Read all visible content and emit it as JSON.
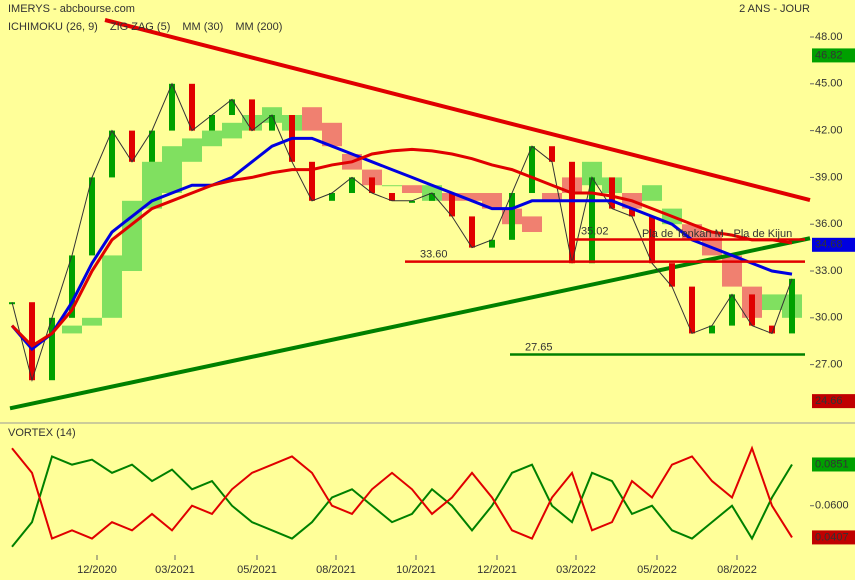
{
  "chart_data": {
    "type": "financial",
    "title": "IMERYS - abcbourse.com",
    "subtitle": "2 ANS - JOUR",
    "x": [
      0,
      1,
      2,
      3,
      4,
      5,
      6,
      7,
      8,
      9,
      10,
      11,
      12,
      13,
      14,
      15,
      16,
      17,
      18,
      19,
      20,
      21,
      22,
      23,
      24,
      25,
      26,
      27,
      28,
      29,
      30,
      31,
      32,
      33,
      34,
      35,
      36,
      37,
      38,
      39
    ],
    "xlim": [
      -0.1,
      39.9
    ],
    "xticks": [
      {
        "value": 4.25,
        "label": "12/2020"
      },
      {
        "value": 8.15,
        "label": "03/2021"
      },
      {
        "value": 12.25,
        "label": "05/2021"
      },
      {
        "value": 16.2,
        "label": "08/2021"
      },
      {
        "value": 20.2,
        "label": "10/2021"
      },
      {
        "value": 24.25,
        "label": "12/2021"
      },
      {
        "value": 28.2,
        "label": "03/2022"
      },
      {
        "value": 32.25,
        "label": "05/2022"
      },
      {
        "value": 36.25,
        "label": "08/2022"
      }
    ],
    "ylim": [
      23.45,
      49.09
    ],
    "yticks": [
      {
        "value": 27,
        "label": "27.00"
      },
      {
        "value": 30,
        "label": "30.00"
      },
      {
        "value": 33,
        "label": "33.00"
      },
      {
        "value": 36,
        "label": "36.00"
      },
      {
        "value": 39,
        "label": "39.00"
      },
      {
        "value": 42,
        "label": "42.00"
      },
      {
        "value": 45,
        "label": "45.00"
      },
      {
        "value": 48,
        "label": "48.00"
      }
    ],
    "price": {
      "up_color": "#00a000",
      "down_color": "#e00000",
      "values": [
        31,
        26,
        30,
        34,
        39,
        42,
        40,
        42,
        45,
        42,
        43,
        44,
        42,
        43,
        40,
        37.5,
        38,
        39,
        38,
        37.5,
        37.5,
        38,
        36.5,
        34.5,
        35,
        38,
        41,
        40,
        33.5,
        39,
        37,
        36.5,
        33.5,
        32,
        29,
        29.5,
        31.5,
        29.5,
        29,
        32.5
      ]
    },
    "ichimoku": {
      "name": "ICHIMOKU (26, 9)",
      "color": "#e00000",
      "up_color": "#80e060",
      "down_color": "#f08070",
      "span_a": [
        null,
        null,
        null,
        29.5,
        30,
        34,
        37.5,
        40,
        41,
        41.5,
        42,
        42.5,
        43,
        43.5,
        43,
        42,
        41,
        39.5,
        38.5,
        38.5,
        38,
        38.5,
        37.5,
        37.5,
        37,
        36,
        35.5,
        37.5,
        38,
        40,
        39,
        37,
        38.5,
        37,
        35,
        34,
        32,
        30,
        31.5,
        31.5
      ],
      "span_b": [
        null,
        null,
        null,
        29,
        29.5,
        30,
        33,
        37,
        38,
        40,
        41,
        41.5,
        42,
        42.5,
        42,
        43.5,
        42.5,
        40.5,
        39.5,
        38.5,
        38.5,
        37.5,
        38,
        38,
        38,
        37,
        36.5,
        38,
        39,
        38.5,
        38,
        38,
        37.5,
        36,
        36,
        35.5,
        34,
        32,
        30.5,
        30
      ]
    },
    "zigzag": {
      "name": "ZIG ZAG (5)",
      "color": "#000000"
    },
    "series": [
      {
        "name": "MM (30)",
        "color": "#0000e0",
        "values": [
          29.5,
          28,
          29,
          31,
          33.5,
          35.5,
          36.5,
          37.5,
          38,
          38.5,
          38.5,
          39,
          40,
          41,
          41.5,
          41.5,
          41,
          40.5,
          40,
          39.5,
          39,
          38.5,
          38,
          37.5,
          37,
          37,
          37.5,
          37.5,
          37.5,
          37.5,
          37.5,
          37,
          36.5,
          36,
          35,
          34.5,
          34,
          33.5,
          33,
          32.8
        ]
      },
      {
        "name": "MM (200)",
        "color": "#e00000",
        "values": [
          29.5,
          28.2,
          29,
          30.5,
          33,
          35,
          36,
          37,
          37.5,
          38,
          38.5,
          38.8,
          39,
          39.3,
          39.5,
          39.5,
          39.8,
          40,
          40.5,
          40.7,
          40.8,
          40.7,
          40.5,
          40.2,
          39.8,
          39.5,
          39,
          38.5,
          38,
          38,
          37.8,
          37.5,
          37,
          36.5,
          36,
          35.5,
          35.3,
          35,
          35,
          34.8
        ]
      }
    ],
    "trendlines": [
      {
        "color": "#e00000",
        "x": [
          4.65,
          39.9
        ],
        "y": [
          49.09,
          37.55
        ]
      },
      {
        "color": "#008000",
        "x": [
          -0.1,
          39.9
        ],
        "y": [
          24.2,
          35.1
        ]
      }
    ],
    "levels": [
      {
        "value": 33.6,
        "label": "33.60",
        "from": 19.65,
        "color": "#e00000"
      },
      {
        "value": 27.65,
        "label": "27.65",
        "from": 24.9,
        "color": "#008000"
      },
      {
        "value": 35.02,
        "label": "35.02",
        "from": 28.15,
        "color": "#e00000"
      }
    ],
    "annotation": "Pla de Tenkan M - Pla de Kijun",
    "markers": [
      {
        "value": 46.82,
        "color": "#00a000"
      },
      {
        "value": 34.68,
        "color": "#0000e0"
      },
      {
        "value": 24.66,
        "color": "#c00000"
      }
    ],
    "vortex": {
      "title": "VORTEX (14)",
      "ylim": [
        0.03,
        0.1
      ],
      "yticks": [
        {
          "value": 0.06,
          "label": "0.0600"
        }
      ],
      "series": [
        {
          "color": "#008000",
          "values": [
            0.035,
            0.05,
            0.09,
            0.085,
            0.088,
            0.08,
            0.085,
            0.075,
            0.082,
            0.07,
            0.075,
            0.06,
            0.05,
            0.045,
            0.04,
            0.05,
            0.065,
            0.07,
            0.06,
            0.05,
            0.055,
            0.07,
            0.06,
            0.045,
            0.06,
            0.08,
            0.085,
            0.06,
            0.05,
            0.08,
            0.075,
            0.055,
            0.06,
            0.045,
            0.04,
            0.05,
            0.06,
            0.04,
            0.065,
            0.0851
          ]
        },
        {
          "color": "#e00000",
          "values": [
            0.095,
            0.08,
            0.04,
            0.045,
            0.04,
            0.05,
            0.045,
            0.055,
            0.045,
            0.06,
            0.055,
            0.07,
            0.08,
            0.085,
            0.09,
            0.08,
            0.06,
            0.055,
            0.07,
            0.08,
            0.07,
            0.055,
            0.065,
            0.08,
            0.065,
            0.045,
            0.04,
            0.065,
            0.08,
            0.045,
            0.05,
            0.075,
            0.065,
            0.085,
            0.09,
            0.075,
            0.065,
            0.095,
            0.06,
            0.0407
          ]
        }
      ],
      "markers": [
        {
          "value": 0.0851,
          "color": "#00a000"
        },
        {
          "value": 0.0407,
          "color": "#c00000"
        }
      ]
    }
  }
}
